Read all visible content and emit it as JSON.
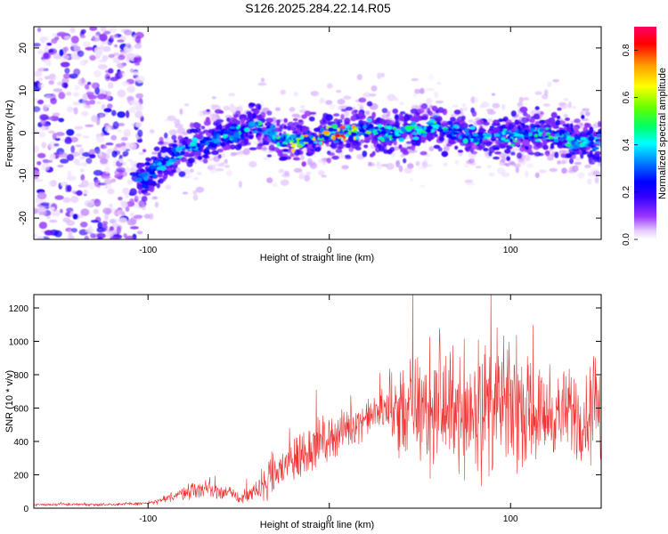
{
  "figure": {
    "title": "S126.2025.284.22.14.R05"
  },
  "colors": {
    "snr_line": "#ee3333",
    "frame": "#000000",
    "colormap_stops": [
      "#ffffff",
      "#cc99ff",
      "#6600ff",
      "#0000ff",
      "#0099ff",
      "#00ffff",
      "#00ff66",
      "#66ff00",
      "#ffff00",
      "#ff9900",
      "#ff0000",
      "#ff0066"
    ]
  },
  "chart_data": [
    {
      "type": "heatmap",
      "name": "spectrogram",
      "xlabel": "Height of straight line (km)",
      "ylabel": "Frequency (Hz)",
      "xlim": [
        -163,
        150
      ],
      "ylim": [
        -25,
        25
      ],
      "xticks": [
        -100,
        0,
        100
      ],
      "xtick_labels": [
        "-100",
        "0",
        "100"
      ],
      "yticks": [
        -20,
        -10,
        0,
        10,
        20
      ],
      "ytick_labels": [
        "-20",
        "-10",
        "0",
        "10",
        "20"
      ],
      "colorbar": {
        "label": "Normalized spectral amplitude",
        "range": [
          0,
          0.9
        ],
        "ticks": [
          0.0,
          0.2,
          0.4,
          0.6,
          0.8
        ],
        "tick_labels": [
          "0.0",
          "0.2",
          "0.4",
          "0.6",
          "0.8"
        ]
      },
      "ridge_track": {
        "x": [
          -105,
          -100,
          -90,
          -80,
          -70,
          -60,
          -50,
          -40,
          -30,
          -20,
          -10,
          0,
          10,
          20,
          30,
          40,
          50,
          60,
          70,
          80,
          90,
          100,
          110,
          120,
          130,
          140,
          150
        ],
        "freq": [
          -11,
          -10,
          -7,
          -4,
          -2,
          -1,
          0,
          2,
          -1,
          -2,
          -1,
          0,
          0,
          1,
          0,
          0,
          1,
          2,
          0,
          -1,
          0,
          -1,
          0,
          0,
          -1,
          -2,
          -2
        ],
        "peak_amplitude": [
          0.35,
          0.4,
          0.4,
          0.45,
          0.4,
          0.45,
          0.5,
          0.55,
          0.5,
          0.7,
          0.75,
          0.9,
          0.8,
          0.6,
          0.5,
          0.55,
          0.5,
          0.55,
          0.45,
          0.5,
          0.4,
          0.5,
          0.45,
          0.55,
          0.5,
          0.45,
          0.4
        ]
      },
      "noise_region_x": [
        -163,
        -103
      ]
    },
    {
      "type": "line",
      "name": "snr",
      "xlabel": "Height of straight line (km)",
      "ylabel": "SNR (10 * v/v)",
      "xlim": [
        -163,
        150
      ],
      "ylim": [
        0,
        1280
      ],
      "xticks": [
        -100,
        0,
        100
      ],
      "xtick_labels": [
        "-100",
        "0",
        "100"
      ],
      "yticks": [
        0,
        200,
        400,
        600,
        800,
        1000,
        1200
      ],
      "ytick_labels": [
        "0",
        "200",
        "400",
        "600",
        "800",
        "1000",
        "1200"
      ],
      "series": [
        {
          "name": "SNR",
          "x": [
            -163,
            -150,
            -140,
            -130,
            -120,
            -110,
            -100,
            -95,
            -90,
            -85,
            -80,
            -75,
            -70,
            -65,
            -60,
            -55,
            -50,
            -45,
            -40,
            -35,
            -30,
            -25,
            -20,
            -15,
            -10,
            -5,
            0,
            5,
            10,
            15,
            20,
            25,
            30,
            35,
            40,
            45,
            50,
            55,
            60,
            65,
            70,
            75,
            80,
            85,
            90,
            95,
            100,
            105,
            110,
            115,
            120,
            125,
            130,
            135,
            140,
            145,
            150
          ],
          "mean": [
            22,
            22,
            22,
            22,
            23,
            25,
            30,
            40,
            55,
            75,
            95,
            110,
            120,
            110,
            100,
            90,
            60,
            70,
            100,
            150,
            200,
            250,
            290,
            320,
            370,
            400,
            420,
            450,
            480,
            510,
            540,
            560,
            580,
            600,
            590,
            600,
            580,
            590,
            600,
            580,
            600,
            590,
            610,
            600,
            620,
            610,
            600,
            590,
            580,
            570,
            560,
            560,
            570,
            560,
            550,
            560,
            570
          ],
          "spread": [
            8,
            8,
            8,
            8,
            8,
            9,
            10,
            14,
            20,
            28,
            36,
            45,
            55,
            50,
            45,
            40,
            35,
            40,
            60,
            90,
            120,
            140,
            150,
            150,
            140,
            120,
            110,
            110,
            110,
            100,
            90,
            100,
            120,
            200,
            250,
            280,
            300,
            320,
            330,
            340,
            330,
            350,
            360,
            370,
            360,
            340,
            320,
            290,
            260,
            240,
            220,
            210,
            220,
            240,
            260,
            280,
            300
          ]
        }
      ]
    }
  ]
}
